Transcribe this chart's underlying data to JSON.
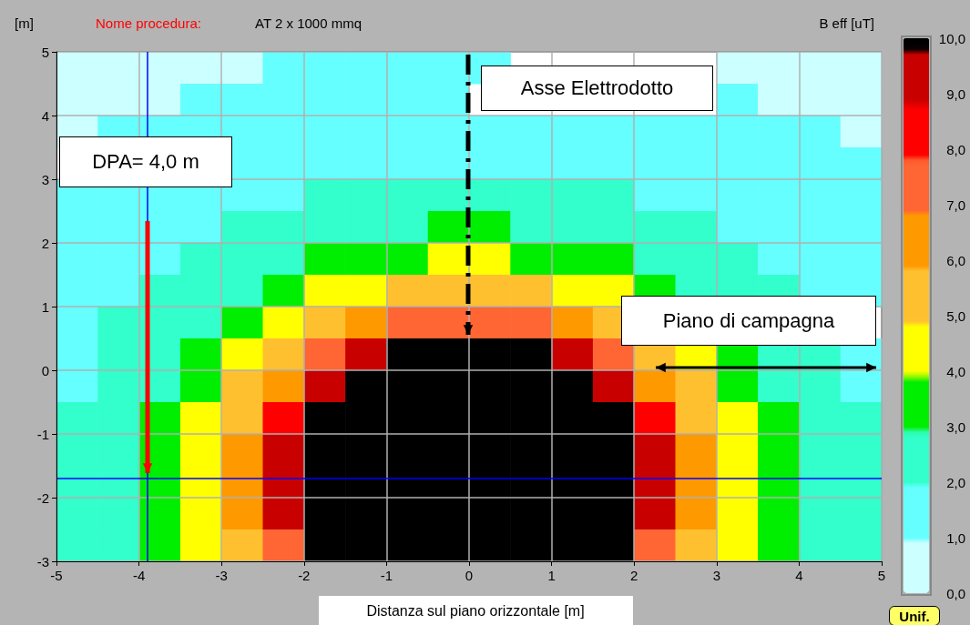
{
  "chart_data": {
    "type": "heatmap",
    "title": "Nome procedura:",
    "subtitle": "AT 2 x 1000 mmq",
    "xlabel": "Distanza sul piano orizzontale [m]",
    "ylabel": "[m]",
    "clabel": "B eff [uT]",
    "annotations": [
      "Asse Elettrodotto",
      "DPA= 4,0 m",
      "Piano di campagna",
      "Unif."
    ],
    "x": [
      -4.75,
      -4.25,
      -3.75,
      -3.25,
      -2.75,
      -2.25,
      -1.75,
      -1.25,
      -0.75,
      -0.25,
      0.25,
      0.75,
      1.25,
      1.75,
      2.25,
      2.75,
      3.25,
      3.75,
      4.25,
      4.75
    ],
    "y": [
      4.75,
      4.25,
      3.75,
      3.25,
      2.75,
      2.25,
      1.75,
      1.25,
      0.75,
      0.25,
      -0.25,
      -0.75,
      -1.25,
      -1.75,
      -2.25,
      -2.75
    ],
    "cells": [
      [
        0.5,
        0.5,
        0.5,
        0.5,
        0.5,
        1.5,
        1.5,
        1.5,
        1.5,
        1.5,
        1.5,
        null,
        null,
        null,
        null,
        null,
        0.5,
        0.5,
        0.5,
        0.5
      ],
      [
        0.5,
        0.5,
        0.5,
        1.5,
        1.5,
        1.5,
        1.5,
        1.5,
        1.5,
        1.5,
        null,
        null,
        null,
        null,
        null,
        null,
        1.5,
        0.5,
        0.5,
        0.5
      ],
      [
        0.5,
        1.5,
        1.5,
        1.5,
        1.5,
        1.5,
        1.5,
        1.5,
        1.5,
        1.5,
        1.5,
        1.5,
        1.5,
        1.5,
        1.5,
        1.5,
        1.5,
        1.5,
        1.5,
        0.5
      ],
      [
        null,
        null,
        null,
        null,
        1.5,
        1.5,
        1.5,
        1.5,
        1.5,
        1.5,
        1.5,
        1.5,
        1.5,
        1.5,
        1.5,
        1.5,
        1.5,
        1.5,
        1.5,
        1.5
      ],
      [
        1.5,
        1.5,
        1.5,
        1.5,
        1.5,
        1.5,
        2.5,
        2.5,
        2.5,
        2.5,
        2.5,
        2.5,
        2.5,
        2.5,
        1.5,
        1.5,
        1.5,
        1.5,
        1.5,
        1.5
      ],
      [
        1.5,
        1.5,
        1.5,
        1.5,
        2.5,
        2.5,
        2.5,
        2.5,
        2.5,
        3.5,
        3.5,
        2.5,
        2.5,
        2.5,
        2.5,
        2.5,
        1.5,
        1.5,
        1.5,
        1.5
      ],
      [
        1.5,
        1.5,
        1.5,
        2.5,
        2.5,
        2.5,
        3.5,
        3.5,
        3.5,
        4.5,
        4.5,
        3.5,
        3.5,
        3.5,
        2.5,
        2.5,
        2.5,
        1.5,
        1.5,
        1.5
      ],
      [
        1.5,
        1.5,
        2.5,
        2.5,
        2.5,
        3.5,
        4.5,
        4.5,
        5.5,
        5.5,
        5.5,
        5.5,
        4.5,
        4.5,
        3.5,
        2.5,
        2.5,
        2.5,
        1.5,
        1.5
      ],
      [
        1.5,
        2.5,
        2.5,
        2.5,
        3.5,
        4.5,
        5.5,
        6.5,
        7.5,
        7.5,
        7.5,
        7.5,
        6.5,
        5.5,
        null,
        null,
        null,
        null,
        null,
        null
      ],
      [
        1.5,
        2.5,
        2.5,
        3.5,
        4.5,
        5.5,
        7.5,
        9.5,
        10,
        10,
        10,
        10,
        9.5,
        7.5,
        5.5,
        4.5,
        3.5,
        2.5,
        2.5,
        1.5
      ],
      [
        1.5,
        2.5,
        2.5,
        3.5,
        5.5,
        6.5,
        9.5,
        10,
        10,
        10,
        10,
        10,
        10,
        9.5,
        6.5,
        5.5,
        3.5,
        2.5,
        2.5,
        1.5
      ],
      [
        2.5,
        2.5,
        3.5,
        4.5,
        5.5,
        8.5,
        10,
        10,
        10,
        10,
        10,
        10,
        10,
        10,
        8.5,
        5.5,
        4.5,
        3.5,
        2.5,
        2.5
      ],
      [
        2.5,
        2.5,
        3.5,
        4.5,
        6.5,
        9.5,
        10,
        10,
        10,
        10,
        10,
        10,
        10,
        10,
        9.5,
        6.5,
        4.5,
        3.5,
        2.5,
        2.5
      ],
      [
        2.5,
        2.5,
        3.5,
        4.5,
        6.5,
        9.5,
        10,
        10,
        10,
        10,
        10,
        10,
        10,
        10,
        9.5,
        6.5,
        4.5,
        3.5,
        2.5,
        2.5
      ],
      [
        2.5,
        2.5,
        3.5,
        4.5,
        6.5,
        9.5,
        10,
        10,
        10,
        10,
        10,
        10,
        10,
        10,
        9.5,
        6.5,
        4.5,
        3.5,
        2.5,
        2.5
      ],
      [
        2.5,
        2.5,
        3.5,
        4.5,
        5.5,
        7.5,
        10,
        10,
        10,
        10,
        10,
        10,
        10,
        10,
        7.5,
        5.5,
        4.5,
        3.5,
        2.5,
        2.5
      ]
    ],
    "colors": [
      "#ccffff",
      "#66ffff",
      "#33ffcc",
      "#00ee00",
      "#ffff00",
      "#ffc030",
      "#ff9900",
      "#ff6633",
      "#ff0000",
      "#c80000",
      "#000000"
    ],
    "clim": [
      0,
      10
    ],
    "cticks": [
      {
        "value": 0,
        "label": "0,0"
      },
      {
        "value": 1,
        "label": "1,0"
      },
      {
        "value": 2,
        "label": "2,0"
      },
      {
        "value": 3,
        "label": "3,0"
      },
      {
        "value": 4,
        "label": "4,0"
      },
      {
        "value": 5,
        "label": "5,0"
      },
      {
        "value": 6,
        "label": "6,0"
      },
      {
        "value": 7,
        "label": "7,0"
      },
      {
        "value": 8,
        "label": "8,0"
      },
      {
        "value": 9,
        "label": "9,0"
      },
      {
        "value": 10,
        "label": "10,0"
      }
    ],
    "xlim": [
      -5,
      5
    ],
    "xticks": [
      -5,
      -4,
      -3,
      -2,
      -1,
      0,
      1,
      2,
      3,
      4,
      5
    ],
    "ylim": [
      -3,
      5
    ],
    "yticks": [
      -3,
      -2,
      -1,
      0,
      1,
      2,
      3,
      4,
      5
    ],
    "ref_lines": [
      {
        "axis": "x",
        "value": -3.9,
        "color": "#0000ff"
      },
      {
        "axis": "y",
        "value": -1.7,
        "color": "#0000ff"
      }
    ],
    "grid": true
  }
}
